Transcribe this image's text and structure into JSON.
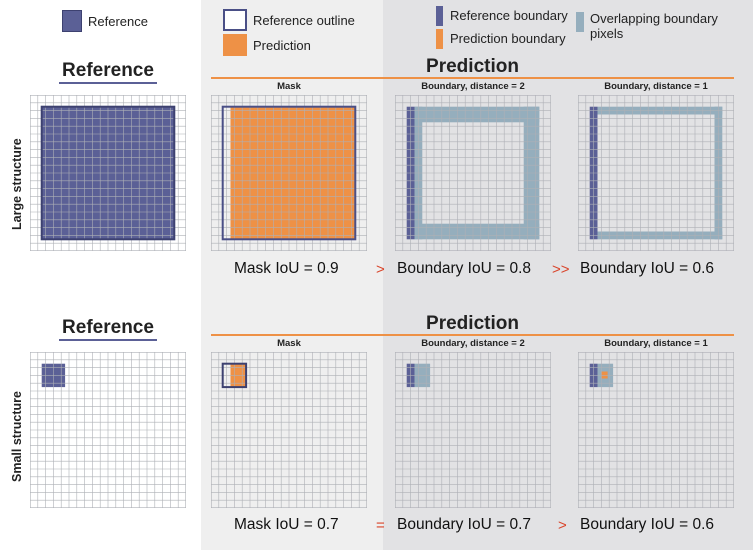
{
  "colors": {
    "reference": "#5b6096",
    "prediction": "#ee9146",
    "overlap": "#95aebd",
    "grid_line": "#aeb0b6",
    "comparison": "#d9452b"
  },
  "legend": {
    "reference": "Reference",
    "reference_outline": "Reference outline",
    "prediction": "Prediction",
    "reference_boundary": "Reference boundary",
    "prediction_boundary": "Prediction boundary",
    "overlapping_boundary": "Overlapping boundary pixels"
  },
  "rows": [
    {
      "row_label": "Large structure",
      "reference_title": "Reference",
      "prediction_title": "Prediction",
      "panels": [
        {
          "label": "Mask",
          "iou": "Mask IoU = 0.9"
        },
        {
          "label": "Boundary, distance = 2",
          "iou": "Boundary IoU = 0.8"
        },
        {
          "label": "Boundary, distance = 1",
          "iou": "Boundary IoU = 0.6"
        }
      ],
      "comparisons": [
        ">",
        ">>"
      ]
    },
    {
      "row_label": "Small structure",
      "reference_title": "Reference",
      "prediction_title": "Prediction",
      "panels": [
        {
          "label": "Mask",
          "iou": "Mask IoU = 0.7"
        },
        {
          "label": "Boundary, distance = 2",
          "iou": "Boundary IoU = 0.7"
        },
        {
          "label": "Boundary, distance = 1",
          "iou": "Boundary IoU = 0.6"
        }
      ],
      "comparisons": [
        "=",
        ">"
      ]
    }
  ]
}
